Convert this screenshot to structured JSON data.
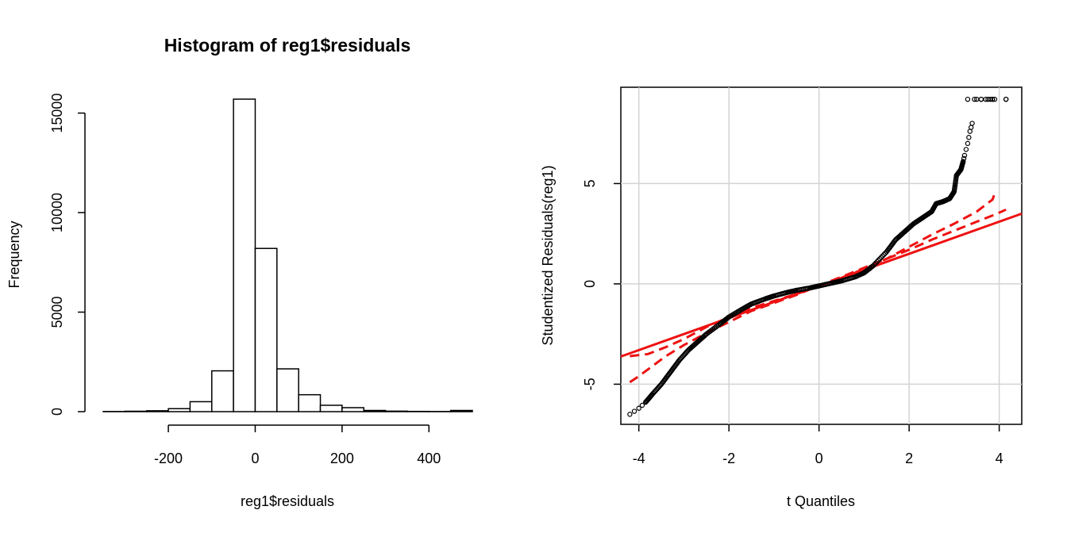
{
  "chart_data": [
    {
      "type": "bar",
      "title": "Histogram of reg1$residuals",
      "xlabel": "reg1$residuals",
      "ylabel": "Frequency",
      "bin_edges": [
        -350,
        -300,
        -250,
        -200,
        -150,
        -100,
        -50,
        0,
        50,
        100,
        150,
        200,
        250,
        300,
        350,
        400,
        450,
        500
      ],
      "values": [
        8,
        20,
        45,
        150,
        500,
        2050,
        15700,
        8200,
        2150,
        850,
        320,
        200,
        60,
        25,
        12,
        8,
        60
      ],
      "xlim": [
        -350,
        500
      ],
      "ylim": [
        0,
        15700
      ],
      "xticks": [
        -200,
        0,
        200,
        400
      ],
      "xtick_labels": [
        "-200",
        "0",
        "200",
        "400"
      ],
      "yticks": [
        0,
        5000,
        10000,
        15000
      ],
      "ytick_labels": [
        "0",
        "5000",
        "10000",
        "15000"
      ],
      "grid": false
    },
    {
      "type": "scatter",
      "title": "",
      "xlabel": "t Quantiles",
      "ylabel": "Studentized Residuals(reg1)",
      "xlim": [
        -4.4,
        4.5
      ],
      "ylim": [
        -7,
        9.8
      ],
      "xticks": [
        -4,
        -2,
        0,
        2,
        4
      ],
      "xtick_labels": [
        "-4",
        "-2",
        "0",
        "2",
        "4"
      ],
      "yticks": [
        -5,
        0,
        5
      ],
      "ytick_labels": [
        "-5",
        "0",
        "5"
      ],
      "grid": true,
      "point_color": "#000000",
      "line_color": "#ee1111",
      "reference_line": {
        "intercept": -0.1,
        "slope": 0.8
      },
      "qq_curve": {
        "x": [
          -4.2,
          -4.0,
          -3.85,
          -3.7,
          -3.5,
          -3.3,
          -3.1,
          -2.9,
          -2.7,
          -2.5,
          -2.2,
          -2.0,
          -1.7,
          -1.5,
          -1.2,
          -1.0,
          -0.7,
          -0.5,
          -0.2,
          0.0,
          0.3,
          0.5,
          0.8,
          1.0,
          1.2,
          1.5,
          1.7,
          1.9,
          2.1,
          2.3,
          2.5,
          2.6,
          2.75,
          2.9,
          3.0,
          3.05,
          3.15,
          3.2,
          3.23,
          3.3,
          3.35,
          3.4,
          3.5,
          3.6,
          3.7,
          3.8,
          3.85,
          3.9,
          4.15
        ],
        "y": [
          -6.5,
          -6.2,
          -5.9,
          -5.5,
          -5.0,
          -4.4,
          -3.8,
          -3.3,
          -2.9,
          -2.5,
          -2.0,
          -1.65,
          -1.25,
          -1.0,
          -0.75,
          -0.6,
          -0.42,
          -0.32,
          -0.2,
          -0.1,
          0.05,
          0.15,
          0.35,
          0.55,
          0.9,
          1.6,
          2.2,
          2.6,
          3.0,
          3.3,
          3.6,
          4.0,
          4.1,
          4.25,
          4.6,
          5.4,
          5.7,
          6.1,
          6.4,
          7.0,
          7.6,
          8.0,
          9.2,
          9.2,
          9.2,
          9.2,
          9.2,
          9.2,
          9.2
        ]
      },
      "outliers": {
        "x": [
          3.3,
          3.45,
          3.6,
          3.75,
          3.85,
          4.15
        ],
        "y": [
          9.2,
          9.2,
          9.2,
          9.2,
          9.2,
          9.2
        ]
      },
      "confidence_band_upper": {
        "x": [
          -4.2,
          -3.8,
          -3.4,
          -3.0,
          -2.5,
          -2.0,
          -1.5,
          -1.0,
          -0.5,
          0.0,
          0.5,
          1.0,
          1.5,
          2.0,
          2.5,
          3.0,
          3.5,
          3.85,
          3.9
        ],
        "y": [
          -3.6,
          -3.5,
          -3.15,
          -2.75,
          -2.15,
          -1.65,
          -1.2,
          -0.85,
          -0.5,
          -0.12,
          0.3,
          0.75,
          1.25,
          1.85,
          2.45,
          3.0,
          3.6,
          4.2,
          4.5
        ]
      },
      "confidence_band_lower": {
        "x": [
          -4.2,
          -4.0,
          -3.7,
          -3.4,
          -3.0,
          -2.5,
          -2.0,
          -1.5,
          -1.0,
          -0.5,
          0.0,
          0.5,
          1.0,
          1.5,
          2.0,
          2.5,
          3.0,
          3.5,
          3.9,
          4.15
        ],
        "y": [
          -4.9,
          -4.6,
          -4.1,
          -3.6,
          -3.05,
          -2.45,
          -1.9,
          -1.35,
          -0.95,
          -0.55,
          -0.08,
          0.35,
          0.8,
          1.25,
          1.7,
          2.2,
          2.65,
          3.1,
          3.45,
          3.7
        ]
      }
    }
  ]
}
